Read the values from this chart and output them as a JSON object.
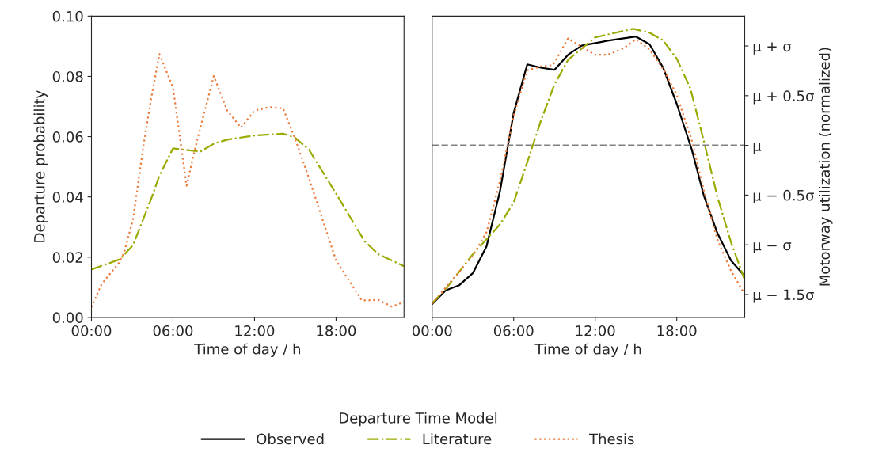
{
  "chart_data": [
    {
      "type": "line",
      "xlabel": "Time of day / h",
      "ylabel": "Departure probability",
      "xlim": [
        0,
        23
      ],
      "xticks": [
        {
          "value": 0,
          "label": "00:00"
        },
        {
          "value": 6,
          "label": "06:00"
        },
        {
          "value": 12,
          "label": "12:00"
        },
        {
          "value": 18,
          "label": "18:00"
        }
      ],
      "ylim": [
        0,
        0.1
      ],
      "yticks": [
        {
          "value": 0,
          "label": "0.00"
        },
        {
          "value": 0.02,
          "label": "0.02"
        },
        {
          "value": 0.04,
          "label": "0.04"
        },
        {
          "value": 0.06,
          "label": "0.06"
        },
        {
          "value": 0.08,
          "label": "0.08"
        },
        {
          "value": 0.1,
          "label": "0.10"
        }
      ],
      "grid": false,
      "legend": "bottom",
      "series": [
        {
          "name": "Literature",
          "color": "#9aaa00",
          "line_style": "dashdot",
          "x": [
            0,
            2.1,
            3.06,
            4.4,
            5,
            6,
            8,
            9.07,
            10,
            12,
            14.1,
            15,
            16,
            18,
            20.1,
            21.1,
            23
          ],
          "values": [
            0.0159,
            0.0193,
            0.024,
            0.0394,
            0.047,
            0.0561,
            0.055,
            0.0578,
            0.059,
            0.0604,
            0.061,
            0.0596,
            0.0557,
            0.0411,
            0.0253,
            0.021,
            0.017
          ]
        },
        {
          "name": "Thesis",
          "color": "#ec7a3a",
          "line_style": "dotted",
          "x": [
            0,
            0.74,
            2,
            2.4,
            3.06,
            3.84,
            4.4,
            5,
            6,
            7,
            7.7,
            9,
            10,
            11,
            12,
            13.1,
            14.1,
            15,
            16,
            18,
            19.9,
            21.1,
            22.1,
            23
          ],
          "values": [
            0.0034,
            0.011,
            0.018,
            0.0214,
            0.0326,
            0.0574,
            0.0728,
            0.0874,
            0.0763,
            0.0437,
            0.0574,
            0.0801,
            0.0686,
            0.063,
            0.0686,
            0.0698,
            0.0694,
            0.0591,
            0.0463,
            0.0189,
            0.0056,
            0.0058,
            0.0036,
            0.0051
          ]
        }
      ]
    },
    {
      "type": "line",
      "xlabel": "Time of day / h",
      "ylabel": "Motorway utilization (normalized)",
      "xlim": [
        0,
        23
      ],
      "xticks": [
        {
          "value": 0,
          "label": "00:00"
        },
        {
          "value": 6,
          "label": "06:00"
        },
        {
          "value": 12,
          "label": "12:00"
        },
        {
          "value": 18,
          "label": "18:00"
        }
      ],
      "ylim": [
        -1.73,
        1.3
      ],
      "yticks": [
        {
          "value": -1.5,
          "label": "μ − 1.5σ"
        },
        {
          "value": -1,
          "label": "μ − σ"
        },
        {
          "value": -0.5,
          "label": "μ − 0.5σ"
        },
        {
          "value": 0,
          "label": "μ"
        },
        {
          "value": 0.5,
          "label": "μ + 0.5σ"
        },
        {
          "value": 1,
          "label": "μ + σ"
        }
      ],
      "grid": false,
      "legend": "bottom",
      "legend_title": "Departure Time Model",
      "ref_lines": [
        {
          "axis": "y",
          "value": 0,
          "color": "#808080",
          "line_style": "dashed"
        }
      ],
      "series": [
        {
          "name": "Observed",
          "color": "#000000",
          "line_style": "solid",
          "x": [
            0,
            1,
            2,
            3,
            4,
            5,
            6,
            7,
            8,
            9,
            10,
            11,
            13,
            15,
            16,
            17,
            18,
            19.1,
            20,
            21,
            22,
            23
          ],
          "values": [
            -1.596,
            -1.458,
            -1.406,
            -1.284,
            -1.016,
            -0.456,
            0.326,
            0.815,
            0.781,
            0.76,
            0.911,
            1.003,
            1.055,
            1.094,
            1.016,
            0.781,
            0.417,
            -0.039,
            -0.508,
            -0.885,
            -1.159,
            -1.315
          ]
        },
        {
          "name": "Literature",
          "color": "#9aaa00",
          "line_style": "dashdot",
          "x": [
            0,
            1.07,
            3,
            5,
            6,
            7,
            8,
            9,
            10,
            12,
            13.07,
            14.8,
            16,
            17,
            18,
            19,
            20,
            21,
            22,
            23
          ],
          "values": [
            -1.589,
            -1.432,
            -1.094,
            -0.794,
            -0.573,
            -0.169,
            0.247,
            0.612,
            0.859,
            1.086,
            1.12,
            1.172,
            1.133,
            1.055,
            0.872,
            0.573,
            0.039,
            -0.521,
            -0.977,
            -1.354
          ]
        },
        {
          "name": "Thesis",
          "color": "#ec7a3a",
          "line_style": "dotted",
          "x": [
            0,
            1.07,
            3,
            4,
            5,
            6,
            7,
            8,
            8.9,
            10,
            11,
            12,
            12.9,
            14.1,
            15,
            16,
            17,
            18,
            19.1,
            20,
            21,
            22,
            23
          ],
          "values": [
            -1.589,
            -1.419,
            -1.107,
            -0.872,
            -0.352,
            0.299,
            0.755,
            0.794,
            0.807,
            1.076,
            0.99,
            0.911,
            0.911,
            0.977,
            1.068,
            0.964,
            0.768,
            0.508,
            0.052,
            -0.456,
            -0.951,
            -1.263,
            -1.497
          ]
        }
      ]
    }
  ]
}
